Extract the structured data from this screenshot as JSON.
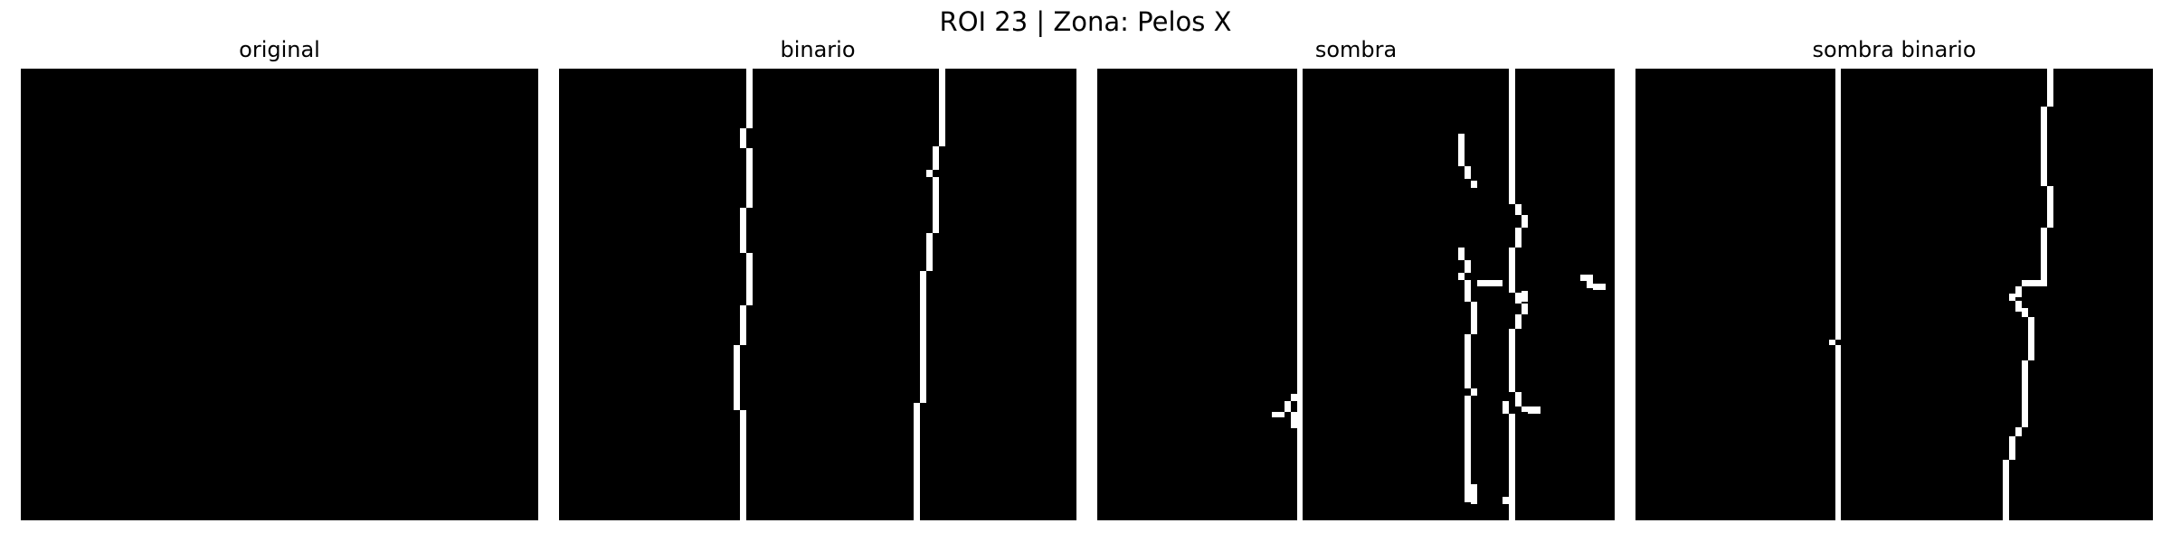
{
  "figure": {
    "title": "ROI 23 | Zona:  Pelos X"
  },
  "panels": [
    {
      "title": "original"
    },
    {
      "title": "binario"
    },
    {
      "title": "sombra"
    },
    {
      "title": "sombra binario"
    }
  ],
  "colors": {
    "background": "#000000",
    "foreground": "#ffffff"
  }
}
